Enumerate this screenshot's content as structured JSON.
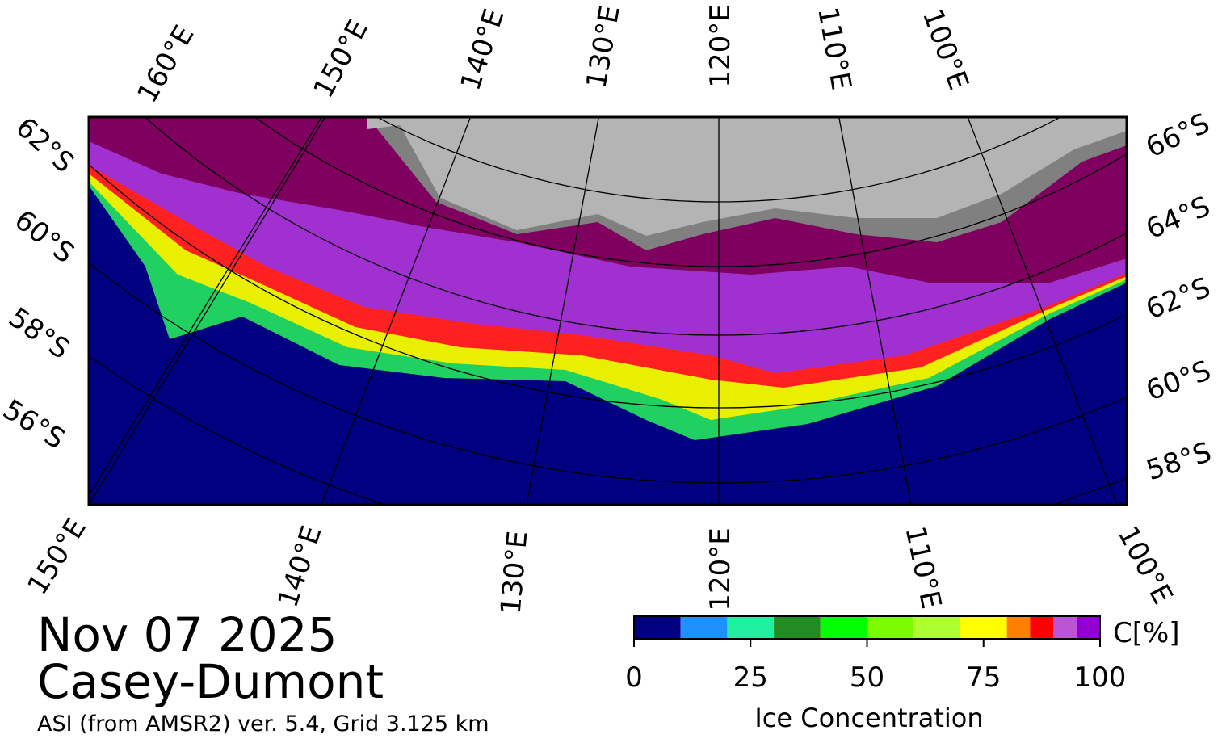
{
  "map": {
    "top_labels": [
      "160°E",
      "150°E",
      "140°E",
      "130°E",
      "120°E",
      "110°E",
      "100°E"
    ],
    "left_labels": [
      "62°S",
      "60°S",
      "58°S",
      "56°S"
    ],
    "right_labels": [
      "66°S",
      "64°S",
      "62°S",
      "60°S",
      "58°S"
    ],
    "bottom_labels": [
      "150°E",
      "140°E",
      "130°E",
      "120°E",
      "110°E",
      "100°E"
    ]
  },
  "info": {
    "date": "Nov 07 2025",
    "region": "Casey-Dumont",
    "source": "ASI (from AMSR2) ver. 5.4,  Grid 3.125 km"
  },
  "colorbar": {
    "unit": "C[%]",
    "label": "Ice Concentration",
    "bounds": [
      0,
      10,
      20,
      30,
      40,
      50,
      60,
      70,
      80,
      85,
      90,
      95,
      100
    ],
    "colors": [
      "#000080",
      "#1e90ff",
      "#20f0a0",
      "#228b22",
      "#00ff00",
      "#7cfc00",
      "#adff2f",
      "#ffff00",
      "#ff8000",
      "#ff0000",
      "#ba55d3",
      "#9400d3"
    ],
    "ticks": [
      0,
      25,
      50,
      75,
      100
    ]
  }
}
